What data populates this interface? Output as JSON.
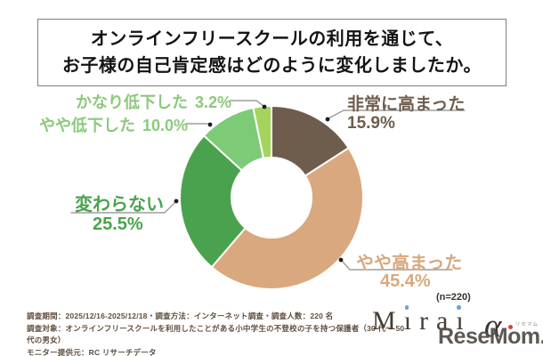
{
  "title": {
    "line1": "オンラインフリースクールの利用を通じて、",
    "line2": "お子様の自己肯定感はどのように変化しましたか。"
  },
  "chart_data": {
    "type": "pie",
    "subtype": "donut",
    "direction": "clockwise",
    "start_angle_deg": 0,
    "unit": "%",
    "sample_size": 220,
    "sample_note": "(n=220)",
    "segments": [
      {
        "label": "非常に高まった",
        "value": 15.9,
        "display": "15.9%",
        "color": "#6e5d4d",
        "label_color": "#6e5d4d"
      },
      {
        "label": "やや高まった",
        "value": 45.4,
        "display": "45.4%",
        "color": "#d9a87e",
        "label_color": "#d9a87e"
      },
      {
        "label": "変わらない",
        "value": 25.5,
        "display": "25.5%",
        "color": "#4ba24e",
        "label_color": "#4ba24e"
      },
      {
        "label": "やや低下した",
        "value": 10.0,
        "display": "10.0%",
        "color": "#7ecb77",
        "label_color": "#8bc97b"
      },
      {
        "label": "かなり低下した",
        "value": 3.2,
        "display": "3.2%",
        "color": "#a5d45c",
        "label_color": "#8bc97b"
      }
    ]
  },
  "footer": {
    "line1": "調査期間：2025/12/16-2025/12/18・調査方法：インターネット調査・調査人数：220 名",
    "line2": "調査対象：オンラインフリースクールを利用したことがある小中学生の不登校の子を持つ保護者（30 代～ 50 代の男女）",
    "line3": "モニター提供元：RC リサーチデータ"
  },
  "logos": {
    "mirai_brand": "Mirai",
    "mirai_alpha": "α",
    "resemom": "ReseMom.",
    "resemom_reading": "リセマム"
  },
  "colors": {
    "leader_line": "#8a8a8a",
    "dot": "#1c1c1c",
    "footer_text": "#5d4e3e"
  }
}
